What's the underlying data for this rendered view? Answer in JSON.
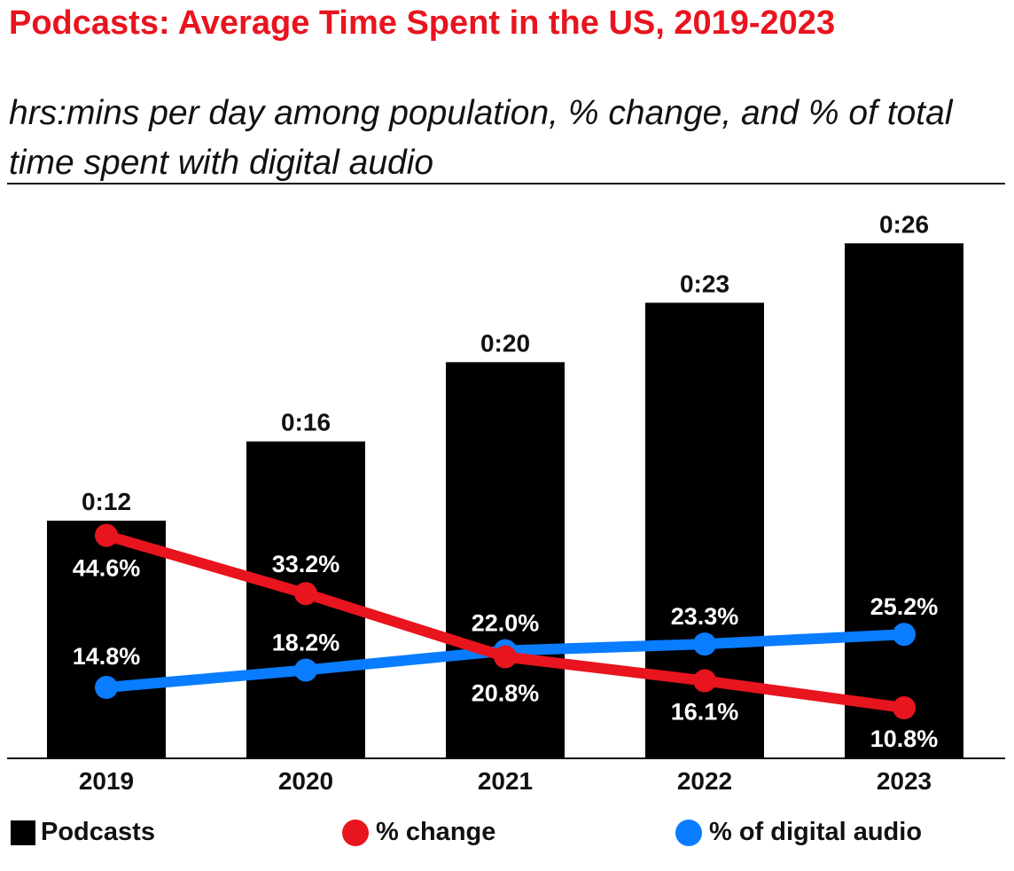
{
  "header": {
    "title": "Podcasts: Average Time Spent in the US, 2019-2023",
    "subtitle": "hrs:mins per day among population, % change, and % of total time spent with digital audio"
  },
  "colors": {
    "title": "#e8141e",
    "bars": "#000000",
    "change_line": "#e8141e",
    "digital_audio_line": "#0a7cff"
  },
  "legend": {
    "podcasts": "Podcasts",
    "change": "% change",
    "digital_audio": "% of digital audio"
  },
  "chart_data": {
    "type": "bar",
    "categories": [
      "2019",
      "2020",
      "2021",
      "2022",
      "2023"
    ],
    "series": [
      {
        "name": "Podcasts",
        "type": "bar",
        "values": [
          12,
          16,
          20,
          23,
          26
        ],
        "labels": [
          "0:12",
          "0:16",
          "0:20",
          "0:23",
          "0:26"
        ],
        "unit": "minutes per day"
      },
      {
        "name": "% change",
        "type": "line",
        "values": [
          44.6,
          33.2,
          20.8,
          16.1,
          10.8
        ],
        "labels": [
          "44.6%",
          "33.2%",
          "20.8%",
          "16.1%",
          "10.8%"
        ]
      },
      {
        "name": "% of digital audio",
        "type": "line",
        "values": [
          14.8,
          18.2,
          22.0,
          23.3,
          25.2
        ],
        "labels": [
          "14.8%",
          "18.2%",
          "22.0%",
          "23.3%",
          "25.2%"
        ]
      }
    ],
    "legend_position": "bottom",
    "grid": false
  }
}
